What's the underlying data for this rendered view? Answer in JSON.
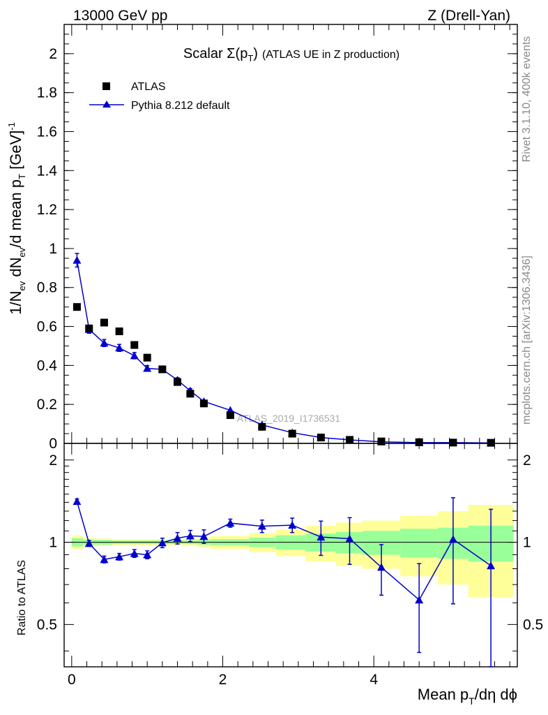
{
  "header": {
    "left": "13000 GeV pp",
    "right": "Z (Drell-Yan)"
  },
  "side_labels": {
    "top": "Rivet 3.1.10,  400k events",
    "bottom": "mcplots.cern.ch [arXiv:1306.3436]"
  },
  "watermark": "ATLAS_2019_I1736531",
  "colors": {
    "mc": "#0000cc",
    "data": "#000000",
    "band_inner": "#99ff99",
    "band_outer": "#ffff99"
  },
  "chart_data": [
    {
      "type": "scatter",
      "panel": "main",
      "title": "Scalar Σ(pT) (ATLAS UE in Z production)",
      "title_parts": {
        "prefix": "Scalar ",
        "sigma": "Σ(p",
        "sub": "T",
        "close": ")",
        "suffix": "(ATLAS UE in Z production)"
      },
      "ylabel": "1/Nev dNev/d mean pT [GeV]^-1",
      "ylabel_parts": {
        "a": "1/N",
        "sub1": "ev",
        "b": " dN",
        "sub2": "ev",
        "c": "/d mean p",
        "sub3": "T",
        "d": " [GeV]",
        "sup": "-1"
      },
      "xlim": [
        -0.1,
        5.9
      ],
      "ylim": [
        0,
        2.15
      ],
      "x_ticks": [
        0,
        2,
        4
      ],
      "y_ticks": [
        {
          "value": 0,
          "label": "0"
        },
        {
          "value": 0.2,
          "label": "0.2"
        },
        {
          "value": 0.4,
          "label": "0.4"
        },
        {
          "value": 0.6,
          "label": "0.6"
        },
        {
          "value": 0.8,
          "label": "0.8"
        },
        {
          "value": 1.0,
          "label": "1"
        },
        {
          "value": 1.2,
          "label": "1.2"
        },
        {
          "value": 1.4,
          "label": "1.4"
        },
        {
          "value": 1.6,
          "label": "1.6"
        },
        {
          "value": 1.8,
          "label": "1.8"
        },
        {
          "value": 2.0,
          "label": "2"
        }
      ],
      "legend": [
        {
          "name": "ATLAS",
          "marker": "square"
        },
        {
          "name": "Pythia 8.212 default",
          "marker": "triangle"
        }
      ],
      "series": [
        {
          "name": "ATLAS",
          "x": [
            0.07,
            0.23,
            0.43,
            0.63,
            0.83,
            1.0,
            1.2,
            1.4,
            1.57,
            1.75,
            2.1,
            2.52,
            2.92,
            3.3,
            3.68,
            4.1,
            4.6,
            5.05,
            5.55
          ],
          "y": [
            0.7,
            0.59,
            0.62,
            0.575,
            0.505,
            0.44,
            0.38,
            0.315,
            0.255,
            0.205,
            0.145,
            0.085,
            0.05,
            0.03,
            0.018,
            0.01,
            0.006,
            0.004,
            0.003
          ]
        },
        {
          "name": "Pythia 8.212 default",
          "x": [
            0.07,
            0.23,
            0.43,
            0.63,
            0.83,
            1.0,
            1.2,
            1.4,
            1.57,
            1.75,
            2.1,
            2.52,
            2.92,
            3.3,
            3.68,
            4.1,
            4.6,
            5.05,
            5.55
          ],
          "y": [
            0.94,
            0.585,
            0.515,
            0.49,
            0.45,
            0.385,
            0.38,
            0.325,
            0.27,
            0.215,
            0.17,
            0.095,
            0.055,
            0.03,
            0.018,
            0.008,
            0.004,
            0.004,
            0.002
          ],
          "yerr": [
            0.035,
            0.02,
            0.018,
            0.018,
            0.016,
            0.014,
            0.013,
            0.012,
            0.011,
            0.01,
            0.008,
            0.006,
            0.004,
            0.003,
            0.002,
            0.002,
            0.001,
            0.001,
            0.001
          ]
        }
      ]
    },
    {
      "type": "line",
      "panel": "ratio",
      "ylabel": "Ratio to ATLAS",
      "xlabel": "Mean pT/dη dϕ",
      "xlabel_parts": {
        "a": "Mean p",
        "sub": "T",
        "b": "/dη dϕ"
      },
      "xlim": [
        -0.1,
        5.9
      ],
      "ylim": [
        0.35,
        2.3
      ],
      "x_ticks": [
        {
          "value": 0,
          "label": "0"
        },
        {
          "value": 2,
          "label": "2"
        },
        {
          "value": 4,
          "label": "4"
        }
      ],
      "y_ticks": [
        {
          "value": 0.5,
          "label": "0.5"
        },
        {
          "value": 1,
          "label": "1"
        },
        {
          "value": 2,
          "label": "2"
        }
      ],
      "band_edges": [
        0.0,
        0.15,
        0.33,
        0.53,
        0.73,
        0.92,
        1.1,
        1.3,
        1.5,
        1.66,
        1.84,
        2.35,
        2.7,
        3.1,
        3.5,
        3.85,
        4.35,
        4.85,
        5.25,
        5.85
      ],
      "band_inner": [
        0.035,
        0.02,
        0.02,
        0.015,
        0.015,
        0.015,
        0.015,
        0.015,
        0.015,
        0.02,
        0.025,
        0.04,
        0.06,
        0.075,
        0.09,
        0.1,
        0.12,
        0.13,
        0.15
      ],
      "band_outer": [
        0.055,
        0.035,
        0.03,
        0.025,
        0.025,
        0.025,
        0.025,
        0.025,
        0.03,
        0.04,
        0.055,
        0.08,
        0.11,
        0.15,
        0.18,
        0.2,
        0.25,
        0.3,
        0.37
      ],
      "series": [
        {
          "name": "Pythia 8.212 default",
          "x": [
            0.07,
            0.23,
            0.43,
            0.63,
            0.83,
            1.0,
            1.2,
            1.4,
            1.57,
            1.75,
            2.1,
            2.52,
            2.92,
            3.3,
            3.68,
            4.1,
            4.6,
            5.05,
            5.55
          ],
          "y": [
            1.41,
            0.99,
            0.865,
            0.885,
            0.91,
            0.9,
            0.995,
            1.035,
            1.055,
            1.05,
            1.175,
            1.145,
            1.155,
            1.045,
            1.03,
            0.81,
            0.615,
            1.025,
            0.82
          ],
          "yerr": [
            0.03,
            0.025,
            0.025,
            0.025,
            0.03,
            0.03,
            0.04,
            0.05,
            0.05,
            0.06,
            0.04,
            0.06,
            0.07,
            0.15,
            0.2,
            0.17,
            0.22,
            0.43,
            0.5
          ]
        }
      ]
    }
  ]
}
